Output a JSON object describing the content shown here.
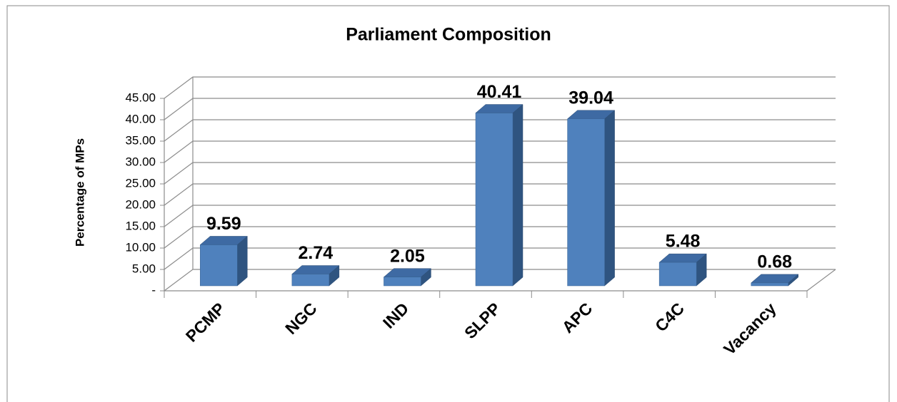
{
  "chart_data": {
    "type": "bar3d",
    "title": "Parliament Composition",
    "y_label": "Percentage of MPs",
    "categories": [
      "PCMP",
      "NGC",
      "IND",
      "SLPP",
      "APC",
      "C4C",
      "Vacancy"
    ],
    "values": [
      9.59,
      2.74,
      2.05,
      40.41,
      39.04,
      5.48,
      0.68
    ],
    "color": "#4f81bd",
    "ylim": [
      0,
      45
    ],
    "yticks": [
      {
        "value": 0,
        "label": "-"
      },
      {
        "value": 5,
        "label": "5.00"
      },
      {
        "value": 10,
        "label": "10.00"
      },
      {
        "value": 15,
        "label": "15.00"
      },
      {
        "value": 20,
        "label": "20.00"
      },
      {
        "value": 25,
        "label": "25.00"
      },
      {
        "value": 30,
        "label": "30.00"
      },
      {
        "value": 35,
        "label": "35.00"
      },
      {
        "value": 40,
        "label": "40.00"
      },
      {
        "value": 45,
        "label": "45.00"
      }
    ],
    "grid": true
  }
}
